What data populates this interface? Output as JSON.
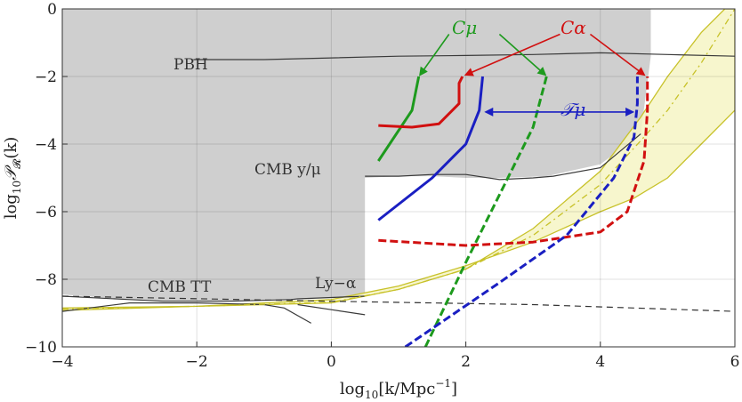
{
  "chart_data": {
    "type": "line",
    "xlabel": "log10[k/Mpc^-1]",
    "ylabel": "log10 P_R(k)",
    "xlabel_parts": {
      "pre": "log",
      "sub": "10",
      "post1": "[k/Mpc",
      "sup": "−1",
      "post2": "]"
    },
    "ylabel_parts": {
      "pre": "log",
      "sub": "10",
      "post": "𝒫",
      "sub2": "𝓡",
      "tail": "(k)"
    },
    "xlim": [
      -4,
      6
    ],
    "ylim": [
      -10,
      0
    ],
    "xticks": [
      -4,
      -2,
      0,
      2,
      4,
      6
    ],
    "yticks": [
      0,
      -2,
      -4,
      -6,
      -8,
      -10
    ],
    "xtick_labels": [
      "−4",
      "−2",
      "0",
      "2",
      "4",
      "6"
    ],
    "ytick_labels": [
      "0",
      "−2",
      "−4",
      "−6",
      "−8",
      "−10"
    ],
    "grid": true,
    "colors": {
      "excluded_fill": "#cfcfcf",
      "boundary": "#3a3a3a",
      "band_fill": "#f6f4c4",
      "band_edge": "#c8c22a",
      "c_mu": "#1d9a1d",
      "c_alpha": "#d11010",
      "t_mu": "#1a1fc2",
      "dashed_ref": "#333333"
    },
    "regions": [
      {
        "name": "gray-excluded",
        "points": [
          [
            -4,
            0
          ],
          [
            -4,
            -8.45
          ],
          [
            -3,
            -8.6
          ],
          [
            -2.5,
            -8.65
          ],
          [
            -1.5,
            -8.65
          ],
          [
            -0.6,
            -8.6
          ],
          [
            -0.5,
            -8.58
          ],
          [
            0.5,
            -8.5
          ],
          [
            0.5,
            -5.0
          ],
          [
            1.0,
            -4.95
          ],
          [
            1.5,
            -4.95
          ],
          [
            2.0,
            -5.0
          ],
          [
            2.5,
            -5.0
          ],
          [
            3.2,
            -4.95
          ],
          [
            4.0,
            -4.6
          ],
          [
            4.6,
            -3.7
          ],
          [
            4.75,
            -1.4
          ],
          [
            4.75,
            0
          ]
        ]
      },
      {
        "name": "yellow-band",
        "points": [
          [
            -4,
            -8.85
          ],
          [
            -2,
            -8.8
          ],
          [
            0,
            -8.7
          ],
          [
            1,
            -8.3
          ],
          [
            2,
            -7.7
          ],
          [
            3,
            -6.5
          ],
          [
            4,
            -4.8
          ],
          [
            4.6,
            -3.2
          ],
          [
            5,
            -2.0
          ],
          [
            5.5,
            -0.7
          ],
          [
            5.85,
            0
          ],
          [
            6,
            0
          ],
          [
            6,
            -3.0
          ],
          [
            5.5,
            -4.0
          ],
          [
            5,
            -5.0
          ],
          [
            4.5,
            -5.6
          ],
          [
            4,
            -6.0
          ],
          [
            3,
            -6.9
          ],
          [
            2,
            -7.6
          ],
          [
            1,
            -8.2
          ],
          [
            0,
            -8.6
          ],
          [
            -2,
            -8.8
          ],
          [
            -4,
            -8.92
          ]
        ]
      }
    ],
    "boundaries": [
      {
        "name": "pbh-curve",
        "points": [
          [
            -2.05,
            -1.5
          ],
          [
            -1,
            -1.5
          ],
          [
            0,
            -1.45
          ],
          [
            1,
            -1.4
          ],
          [
            2,
            -1.38
          ],
          [
            3,
            -1.35
          ],
          [
            4,
            -1.3
          ],
          [
            5,
            -1.35
          ],
          [
            6,
            -1.4
          ]
        ]
      },
      {
        "name": "cmb-ymu-curve",
        "points": [
          [
            0.5,
            -4.95
          ],
          [
            1,
            -4.95
          ],
          [
            1.5,
            -4.9
          ],
          [
            2,
            -4.9
          ],
          [
            2.5,
            -5.05
          ],
          [
            3,
            -5.0
          ],
          [
            3.3,
            -4.95
          ],
          [
            4,
            -4.7
          ],
          [
            4.6,
            -3.7
          ]
        ]
      },
      {
        "name": "cmb-tt-upper",
        "points": [
          [
            -4,
            -8.5
          ],
          [
            -3,
            -8.6
          ],
          [
            -2.5,
            -8.65
          ],
          [
            -1.5,
            -8.65
          ],
          [
            -0.6,
            -8.6
          ],
          [
            -0.5,
            -8.58
          ],
          [
            0.5,
            -8.5
          ]
        ]
      },
      {
        "name": "cmb-tt-lower",
        "points": [
          [
            -4,
            -8.95
          ],
          [
            -3,
            -8.7
          ],
          [
            -2,
            -8.7
          ],
          [
            -1,
            -8.75
          ],
          [
            -0.7,
            -8.85
          ],
          [
            -0.3,
            -9.3
          ]
        ]
      },
      {
        "name": "lyalpha-lower",
        "points": [
          [
            -0.5,
            -8.75
          ],
          [
            0,
            -8.9
          ],
          [
            0.5,
            -9.05
          ]
        ]
      }
    ],
    "band_mid": {
      "name": "yellow-band-mid",
      "points": [
        [
          -4,
          -8.88
        ],
        [
          -2,
          -8.8
        ],
        [
          0,
          -8.68
        ],
        [
          1,
          -8.3
        ],
        [
          2,
          -7.7
        ],
        [
          3,
          -6.7
        ],
        [
          4,
          -5.2
        ],
        [
          4.6,
          -3.9
        ],
        [
          5,
          -3.0
        ],
        [
          5.5,
          -1.6
        ],
        [
          6,
          0
        ]
      ]
    },
    "reference_line": {
      "name": "reference-dashed-line",
      "points": [
        [
          -4,
          -8.5
        ],
        [
          0,
          -8.65
        ],
        [
          3,
          -8.75
        ],
        [
          6,
          -8.95
        ]
      ]
    },
    "series": [
      {
        "name": "C_mu solid",
        "color": "c_mu",
        "dashed": false,
        "points": [
          [
            0.7,
            -4.5
          ],
          [
            1.2,
            -3.0
          ],
          [
            1.25,
            -2.5
          ],
          [
            1.3,
            -2.0
          ]
        ]
      },
      {
        "name": "C_mu dashed",
        "color": "c_mu",
        "dashed": true,
        "points": [
          [
            1.4,
            -10
          ],
          [
            2,
            -7.5
          ],
          [
            2.5,
            -5.5
          ],
          [
            3.0,
            -3.5
          ],
          [
            3.2,
            -2.0
          ]
        ]
      },
      {
        "name": "C_alpha solid",
        "color": "c_alpha",
        "dashed": false,
        "points": [
          [
            0.7,
            -3.45
          ],
          [
            1.2,
            -3.5
          ],
          [
            1.6,
            -3.4
          ],
          [
            1.9,
            -2.8
          ],
          [
            1.9,
            -2.2
          ],
          [
            1.95,
            -2.0
          ]
        ]
      },
      {
        "name": "C_alpha dashed",
        "color": "c_alpha",
        "dashed": true,
        "points": [
          [
            0.7,
            -6.85
          ],
          [
            2,
            -7.0
          ],
          [
            3,
            -6.9
          ],
          [
            4,
            -6.6
          ],
          [
            4.4,
            -6.0
          ],
          [
            4.65,
            -4.5
          ],
          [
            4.7,
            -3.0
          ],
          [
            4.7,
            -2.0
          ]
        ]
      },
      {
        "name": "T_mu solid",
        "color": "t_mu",
        "dashed": false,
        "points": [
          [
            0.7,
            -6.25
          ],
          [
            1.5,
            -5.0
          ],
          [
            2.0,
            -4.0
          ],
          [
            2.2,
            -3.0
          ],
          [
            2.25,
            -2.0
          ]
        ]
      },
      {
        "name": "T_mu dashed",
        "color": "t_mu",
        "dashed": true,
        "points": [
          [
            1.1,
            -10
          ],
          [
            2.5,
            -8.1
          ],
          [
            3.5,
            -6.7
          ],
          [
            4.2,
            -5.0
          ],
          [
            4.5,
            -3.8
          ],
          [
            4.55,
            -2.8
          ],
          [
            4.55,
            -2.0
          ]
        ]
      }
    ],
    "annotations": {
      "pbh": "PBH",
      "cmb_ymu": "CMB y/μ",
      "cmb_tt": "CMB TT",
      "ly_alpha": "Ly−α",
      "c_mu": "Cμ",
      "c_alpha": "Cα",
      "t_mu": "𝒯μ"
    },
    "arrows": [
      {
        "name": "arrow-cmu-left",
        "color": "c_mu",
        "from": [
          1.75,
          -0.75
        ],
        "to": [
          1.32,
          -1.95
        ],
        "double": false
      },
      {
        "name": "arrow-cmu-right",
        "color": "c_mu",
        "from": [
          2.5,
          -0.75
        ],
        "to": [
          3.18,
          -1.95
        ],
        "double": false
      },
      {
        "name": "arrow-calpha-left",
        "color": "c_alpha",
        "from": [
          3.4,
          -0.75
        ],
        "to": [
          2.0,
          -1.95
        ],
        "double": false
      },
      {
        "name": "arrow-calpha-right",
        "color": "c_alpha",
        "from": [
          3.85,
          -0.75
        ],
        "to": [
          4.65,
          -1.95
        ],
        "double": false
      },
      {
        "name": "arrow-tmu-double",
        "color": "t_mu",
        "from": [
          2.3,
          -3.05
        ],
        "to": [
          4.48,
          -3.05
        ],
        "double": true
      }
    ]
  }
}
